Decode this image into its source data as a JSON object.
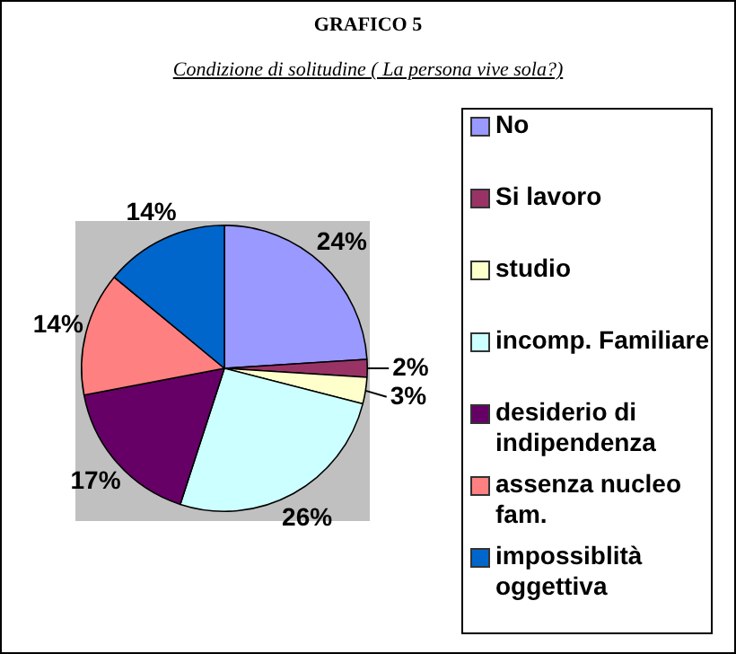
{
  "chart_data": {
    "type": "pie",
    "title": "GRAFICO 5",
    "subtitle": "Condizione di solitudine ( La persona vive sola?)",
    "categories": [
      "No",
      "Si lavoro",
      "studio",
      "incomp. Familiare",
      "desiderio di indipendenza",
      "assenza nucleo fam.",
      "impossiblità oggettiva"
    ],
    "values": [
      24,
      2,
      3,
      26,
      17,
      14,
      14
    ],
    "value_labels": [
      "24%",
      "2%",
      "3%",
      "26%",
      "17%",
      "14%",
      "14%"
    ],
    "colors": [
      "#9999ff",
      "#993366",
      "#ffffcc",
      "#ccffff",
      "#660066",
      "#ff8080",
      "#0066cc"
    ],
    "legend": "right"
  }
}
